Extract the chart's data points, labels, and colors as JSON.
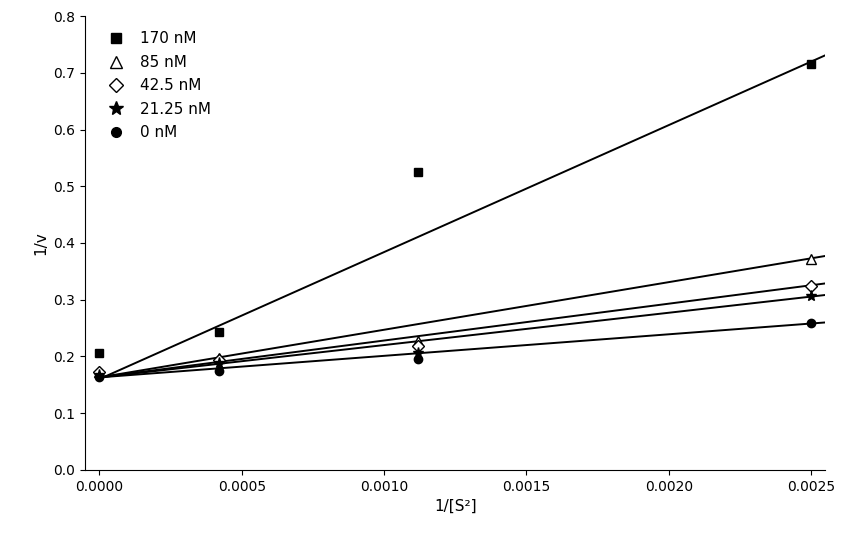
{
  "title": "",
  "xlabel": "1/[S²]",
  "ylabel": "1/v",
  "xlim": [
    -5e-05,
    0.00255
  ],
  "ylim": [
    0.0,
    0.8
  ],
  "xticks": [
    0.0,
    0.0005,
    0.001,
    0.0015,
    0.002,
    0.0025
  ],
  "yticks": [
    0.0,
    0.1,
    0.2,
    0.3,
    0.4,
    0.5,
    0.6,
    0.7,
    0.8
  ],
  "series": [
    {
      "label": "170 nM",
      "marker": "s",
      "marker_facecolor": "black",
      "marker_edgecolor": "black",
      "marker_size": 6,
      "x_data": [
        0.0,
        0.00042,
        0.00112,
        0.0025
      ],
      "y_data": [
        0.206,
        0.243,
        0.525,
        0.716
      ],
      "fit_slope": 224.0,
      "fit_intercept": 0.16
    },
    {
      "label": "85 nM",
      "marker": "^",
      "marker_facecolor": "white",
      "marker_edgecolor": "black",
      "marker_size": 7,
      "x_data": [
        0.0,
        0.00042,
        0.00112,
        0.0025
      ],
      "y_data": [
        0.173,
        0.198,
        0.228,
        0.372
      ],
      "fit_slope": 84.0,
      "fit_intercept": 0.163
    },
    {
      "label": "42.5 nM",
      "marker": "D",
      "marker_facecolor": "white",
      "marker_edgecolor": "black",
      "marker_size": 6,
      "x_data": [
        0.0,
        0.00042,
        0.00112,
        0.0025
      ],
      "y_data": [
        0.172,
        0.193,
        0.218,
        0.325
      ],
      "fit_slope": 65.0,
      "fit_intercept": 0.163
    },
    {
      "label": "21.25 nM",
      "marker": "*",
      "marker_facecolor": "black",
      "marker_edgecolor": "black",
      "marker_size": 8,
      "x_data": [
        0.0,
        0.00042,
        0.00112,
        0.0025
      ],
      "y_data": [
        0.168,
        0.188,
        0.206,
        0.307
      ],
      "fit_slope": 57.0,
      "fit_intercept": 0.163
    },
    {
      "label": "0 nM",
      "marker": "o",
      "marker_facecolor": "black",
      "marker_edgecolor": "black",
      "marker_size": 6,
      "x_data": [
        0.0,
        0.00042,
        0.00112,
        0.0025
      ],
      "y_data": [
        0.163,
        0.174,
        0.196,
        0.259
      ],
      "fit_slope": 38.0,
      "fit_intercept": 0.163
    }
  ],
  "background_color": "#ffffff",
  "line_color": "black",
  "line_width": 1.4,
  "font_size": 11,
  "tick_fontsize": 10,
  "legend_fontsize": 11
}
